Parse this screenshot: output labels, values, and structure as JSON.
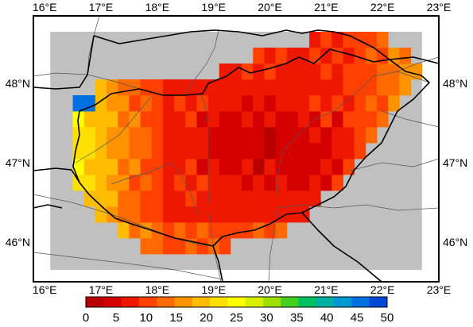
{
  "map": {
    "lon_labels": [
      "16°E",
      "17°E",
      "18°E",
      "19°E",
      "20°E",
      "21°E",
      "22°E",
      "23°E"
    ],
    "lat_labels": [
      "48°N",
      "47°N",
      "46°N"
    ],
    "lon_range": [
      15.8,
      23.0
    ],
    "lat_range": [
      45.5,
      48.85
    ],
    "lon_ticks": [
      16,
      17,
      18,
      19,
      20,
      21,
      22,
      23
    ],
    "lat_ticks": [
      48,
      47,
      46
    ],
    "grid_bounds_lon": [
      16.1,
      22.7
    ],
    "grid_bounds_lat": [
      45.65,
      48.65
    ],
    "cell_size_deg": [
      0.2,
      0.2
    ],
    "mask_color": "#c0c0c0",
    "colorbar": {
      "min": 0,
      "max": 50,
      "tick_labels": [
        "0",
        "5",
        "10",
        "15",
        "20",
        "25",
        "30",
        "35",
        "40",
        "45",
        "50"
      ],
      "colors": [
        "#b80000",
        "#d40000",
        "#ee1800",
        "#ff4000",
        "#ff6a00",
        "#ff9400",
        "#ffbc00",
        "#ffe000",
        "#ffff00",
        "#d8f000",
        "#9ee000",
        "#44d020",
        "#00c060",
        "#00b0a0",
        "#0098d0",
        "#0070e0",
        "#0048d8"
      ]
    }
  }
}
